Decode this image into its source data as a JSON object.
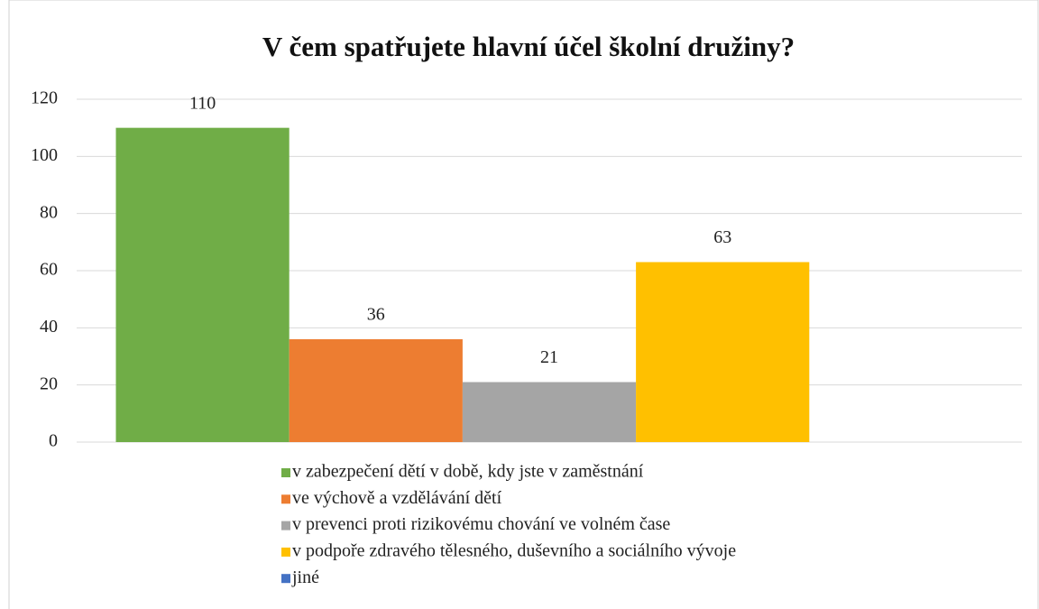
{
  "chart_data": {
    "type": "bar",
    "title": "V čem spatřujete hlavní účel školní družiny?",
    "categories": [
      null
    ],
    "series": [
      {
        "name": "v zabezpečení dětí v době, kdy jste v zaměstnání",
        "color": "#70ad47",
        "values": [
          110
        ]
      },
      {
        "name": "ve výchově a vzdělávání dětí",
        "color": "#ed7d31",
        "values": [
          36
        ]
      },
      {
        "name": "v prevenci proti rizikovému chování ve volném čase",
        "color": "#a5a5a5",
        "values": [
          21
        ]
      },
      {
        "name": "v podpoře zdravého tělesného, duševního a sociálního vývoje",
        "color": "#ffc000",
        "values": [
          63
        ]
      },
      {
        "name": "jiné",
        "color": "#4472c4",
        "values": [
          null
        ]
      }
    ],
    "ylim": [
      0,
      120
    ],
    "yticks": [
      0,
      20,
      40,
      60,
      80,
      100,
      120
    ],
    "grid": true,
    "legend": "bottom"
  }
}
